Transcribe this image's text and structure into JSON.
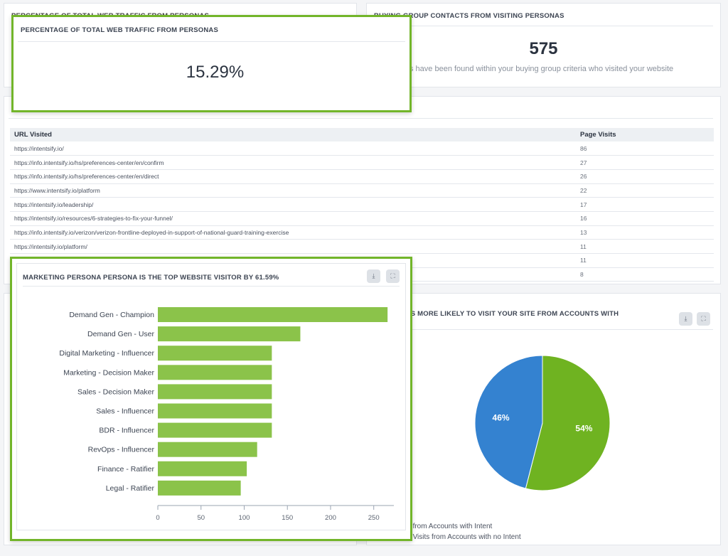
{
  "traffic_panel": {
    "title": "PERCENTAGE OF TOTAL WEB TRAFFIC FROM PERSONAS",
    "value": "15.29%"
  },
  "contacts_panel": {
    "title": "BUYING GROUP CONTACTS FROM VISITING PERSONAS",
    "value": "575",
    "subtitle": "s have been found within your buying group criteria who visited your website"
  },
  "urls_table": {
    "columns": [
      "URL Visited",
      "Page Visits"
    ],
    "rows": [
      {
        "url": "https://intentsify.io/",
        "visits": "86"
      },
      {
        "url": "https://info.intentsify.io/hs/preferences-center/en/confirm",
        "visits": "27"
      },
      {
        "url": "https://info.intentsify.io/hs/preferences-center/en/direct",
        "visits": "26"
      },
      {
        "url": "https://www.intentsify.io/platform",
        "visits": "22"
      },
      {
        "url": "https://intentsify.io/leadership/",
        "visits": "17"
      },
      {
        "url": "https://intentsify.io/resources/6-strategies-to-fix-your-funnel/",
        "visits": "16"
      },
      {
        "url": "https://info.intentsify.io/verizon/verizon-frontline-deployed-in-support-of-national-guard-training-exercise",
        "visits": "13"
      },
      {
        "url": "https://intentsify.io/platform/",
        "visits": "11"
      },
      {
        "url": "",
        "visits": "11"
      },
      {
        "url": "",
        "visits": "8"
      }
    ]
  },
  "persona_panel": {
    "title": "MARKETING PERSONA PERSONA IS THE TOP WEBSITE VISITOR BY 61.59%",
    "download_icon": "download-icon",
    "expand_icon": "expand-icon"
  },
  "pie_panel": {
    "title": "G GROUP IS MORE LIKELY TO VISIT YOUR SITE FROM ACCOUNTS WITH",
    "download_icon": "download-icon",
    "expand_icon": "expand-icon"
  },
  "colors": {
    "highlight": "#72b52a",
    "bar": "#8bc34a",
    "pie_green": "#6fb321",
    "pie_blue": "#3482d0"
  },
  "chart_data": [
    {
      "type": "bar",
      "orientation": "horizontal",
      "title": "MARKETING PERSONA PERSONA IS THE TOP WEBSITE VISITOR BY 61.59%",
      "categories": [
        "Demand Gen - Champion",
        "Demand Gen - User",
        "Digital Marketing - Influencer",
        "Marketing - Decision Maker",
        "Sales - Decision Maker",
        "Sales - Influencer",
        "BDR - Influencer",
        "RevOps - Influencer",
        "Finance - Ratifier",
        "Legal - Ratifier"
      ],
      "values": [
        266,
        165,
        132,
        132,
        132,
        132,
        132,
        115,
        103,
        96
      ],
      "xlim": [
        0,
        270
      ],
      "xticks": [
        0,
        50,
        100,
        150,
        200,
        250
      ],
      "xlabel": "",
      "ylabel": "",
      "grid": false
    },
    {
      "type": "pie",
      "slices": [
        {
          "label": "Group from Accounts with Intent",
          "value": 54,
          "display": "54%"
        },
        {
          "label": "Group Visits from Accounts with no Intent",
          "value": 46,
          "display": "46%"
        }
      ],
      "legend": "bottom-left"
    }
  ]
}
